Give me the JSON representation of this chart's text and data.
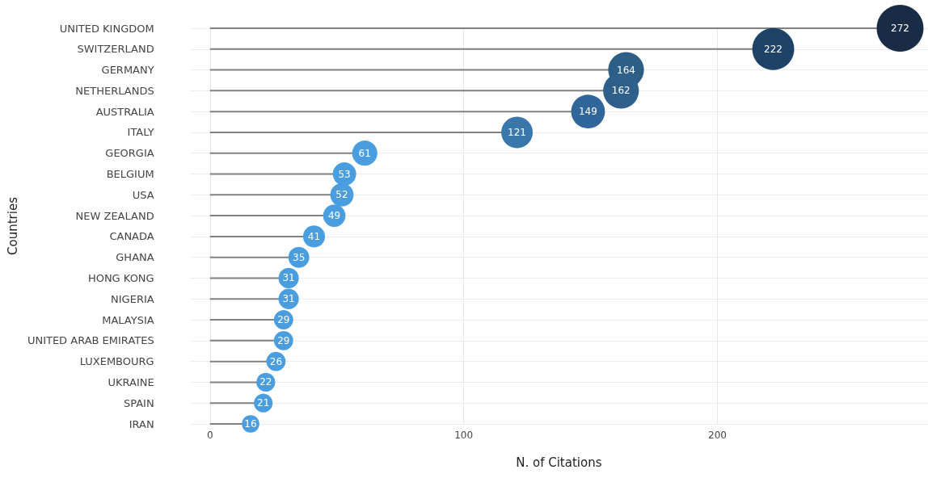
{
  "chart_data": {
    "type": "lollipop",
    "orientation": "horizontal",
    "xlabel": "N. of Citations",
    "ylabel": "Countries",
    "categories": [
      "UNITED KINGDOM",
      "SWITZERLAND",
      "GERMANY",
      "NETHERLANDS",
      "AUSTRALIA",
      "ITALY",
      "GEORGIA",
      "BELGIUM",
      "USA",
      "NEW ZEALAND",
      "CANADA",
      "GHANA",
      "HONG KONG",
      "NIGERIA",
      "MALAYSIA",
      "UNITED ARAB EMIRATES",
      "LUXEMBOURG",
      "UKRAINE",
      "SPAIN",
      "IRAN"
    ],
    "values": [
      272,
      222,
      164,
      162,
      149,
      121,
      61,
      53,
      52,
      49,
      41,
      35,
      31,
      31,
      29,
      29,
      26,
      22,
      21,
      16
    ],
    "colors": [
      "#1a2b45",
      "#1f4366",
      "#2d5e88",
      "#2e608b",
      "#30669a",
      "#3a78ab",
      "#4a9ee0",
      "#4a9ee0",
      "#4a9ee0",
      "#4a9ee0",
      "#4a9ee0",
      "#4a9ee0",
      "#4a9ee0",
      "#4a9ee0",
      "#4a9ee0",
      "#4a9ee0",
      "#4a9ee0",
      "#4a9ee0",
      "#4a9ee0",
      "#4a9ee0"
    ],
    "sizes": [
      1,
      0.8,
      0.58,
      0.58,
      0.52,
      0.45,
      0.29,
      0.25,
      0.25,
      0.23,
      0.22,
      0.2,
      0.19,
      0.19,
      0.17,
      0.17,
      0.17,
      0.16,
      0.16,
      0.14
    ],
    "xlim": [
      -8,
      283
    ],
    "xticks": [
      0,
      100,
      200
    ],
    "grid": true,
    "data_labels": true,
    "marker": "circle"
  }
}
